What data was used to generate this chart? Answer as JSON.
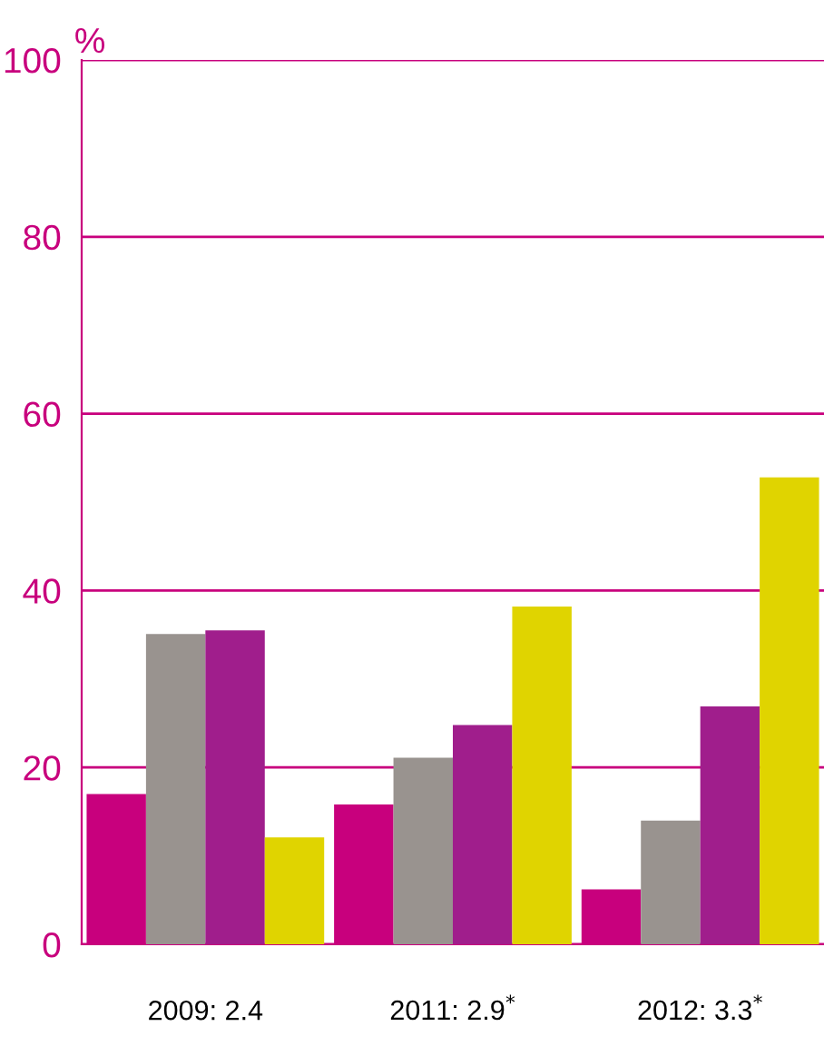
{
  "chart_data": {
    "type": "bar",
    "ylabel": "%",
    "categories": [
      "2009: 2.4",
      "2011: 2.9$^{*}$",
      "2012: 3.3$^{*}$"
    ],
    "series": [
      {
        "color": "#c8007d",
        "values": [
          17.0,
          15.8,
          6.2
        ]
      },
      {
        "color": "#99938f",
        "values": [
          35.1,
          21.1,
          14.0
        ]
      },
      {
        "color": "#a01e8c",
        "values": [
          35.5,
          24.8,
          26.9
        ]
      },
      {
        "color": "#e0d400",
        "values": [
          12.1,
          38.2,
          52.8
        ]
      }
    ],
    "ylim": [
      0,
      100
    ],
    "yticks": [
      0,
      20,
      40,
      60,
      80,
      100
    ],
    "grid": "y",
    "legend": false
  }
}
